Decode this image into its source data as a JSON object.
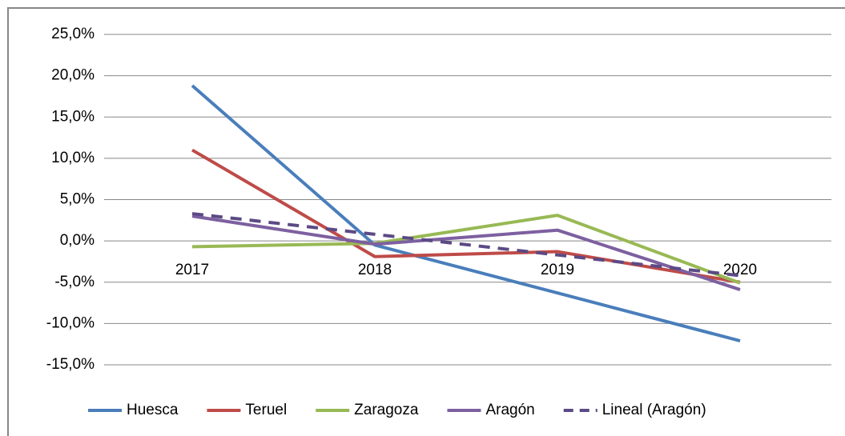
{
  "chart_data": {
    "type": "line",
    "categories": [
      "2017",
      "2018",
      "2019",
      "2020"
    ],
    "series": [
      {
        "name": "Huesca",
        "color": "#4a7ebb",
        "values": [
          18.8,
          -0.5,
          -6.3,
          -12.1
        ]
      },
      {
        "name": "Teruel",
        "color": "#be4b48",
        "values": [
          11.0,
          -1.9,
          -1.3,
          -5.0
        ]
      },
      {
        "name": "Zaragoza",
        "color": "#98b954",
        "values": [
          -0.7,
          -0.3,
          3.1,
          -5.1
        ]
      },
      {
        "name": "Aragón",
        "color": "#7d60a0",
        "values": [
          3.0,
          -0.4,
          1.3,
          -5.9
        ]
      },
      {
        "name": "Lineal (Aragón)",
        "color": "#5b4a85",
        "dashed": true,
        "values": [
          3.3,
          0.8,
          -1.7,
          -4.2
        ]
      }
    ],
    "ylim": [
      -15,
      25
    ],
    "yticks": [
      {
        "value": -15,
        "label": "-15,0%"
      },
      {
        "value": -10,
        "label": "-10,0%"
      },
      {
        "value": -5,
        "label": "-5,0%"
      },
      {
        "value": 0,
        "label": "0,0%"
      },
      {
        "value": 5,
        "label": "5,0%"
      },
      {
        "value": 10,
        "label": "10,0%"
      },
      {
        "value": 15,
        "label": "15,0%"
      },
      {
        "value": 20,
        "label": "20,0%"
      },
      {
        "value": 25,
        "label": "25,0%"
      }
    ],
    "grid": true,
    "legend": "bottom"
  }
}
